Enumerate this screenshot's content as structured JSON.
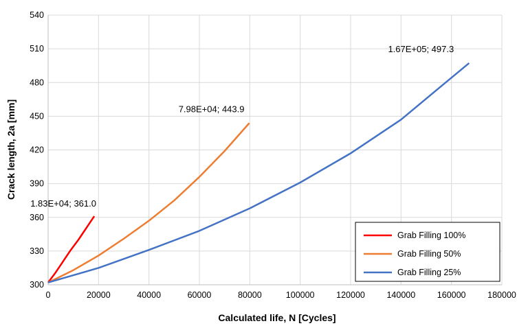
{
  "chart_data": {
    "type": "line",
    "title": "",
    "xlabel": "Calculated life, N [Cycles]",
    "ylabel": "Crack length, 2a [mm]",
    "xlim": [
      0,
      180000
    ],
    "ylim": [
      300,
      540
    ],
    "xticks": [
      0,
      20000,
      40000,
      60000,
      80000,
      100000,
      120000,
      140000,
      160000,
      180000
    ],
    "yticks": [
      300,
      330,
      360,
      390,
      420,
      450,
      480,
      510,
      540
    ],
    "grid": true,
    "legend": "bottom-right",
    "series": [
      {
        "name": "Grab Filling 100%",
        "color": "#ff0000",
        "x": [
          0,
          3000,
          6000,
          9000,
          12000,
          15000,
          18300
        ],
        "y": [
          302,
          311,
          321,
          331,
          340,
          350,
          361.0
        ],
        "annotation": "1.83E+04; 361.0"
      },
      {
        "name": "Grab Filling 50%",
        "color": "#ed7d31",
        "x": [
          0,
          10000,
          20000,
          30000,
          40000,
          50000,
          60000,
          70000,
          79800
        ],
        "y": [
          302,
          313,
          326,
          341,
          357,
          375,
          396,
          419,
          443.9
        ],
        "annotation": "7.98E+04; 443.9"
      },
      {
        "name": "Grab Filling 25%",
        "color": "#4472c4",
        "x": [
          0,
          20000,
          40000,
          60000,
          80000,
          100000,
          120000,
          140000,
          155000,
          167000
        ],
        "y": [
          302,
          315,
          331,
          348,
          368,
          391,
          417,
          447,
          475,
          497.3
        ],
        "annotation": "1.67E+05; 497.3"
      }
    ]
  }
}
